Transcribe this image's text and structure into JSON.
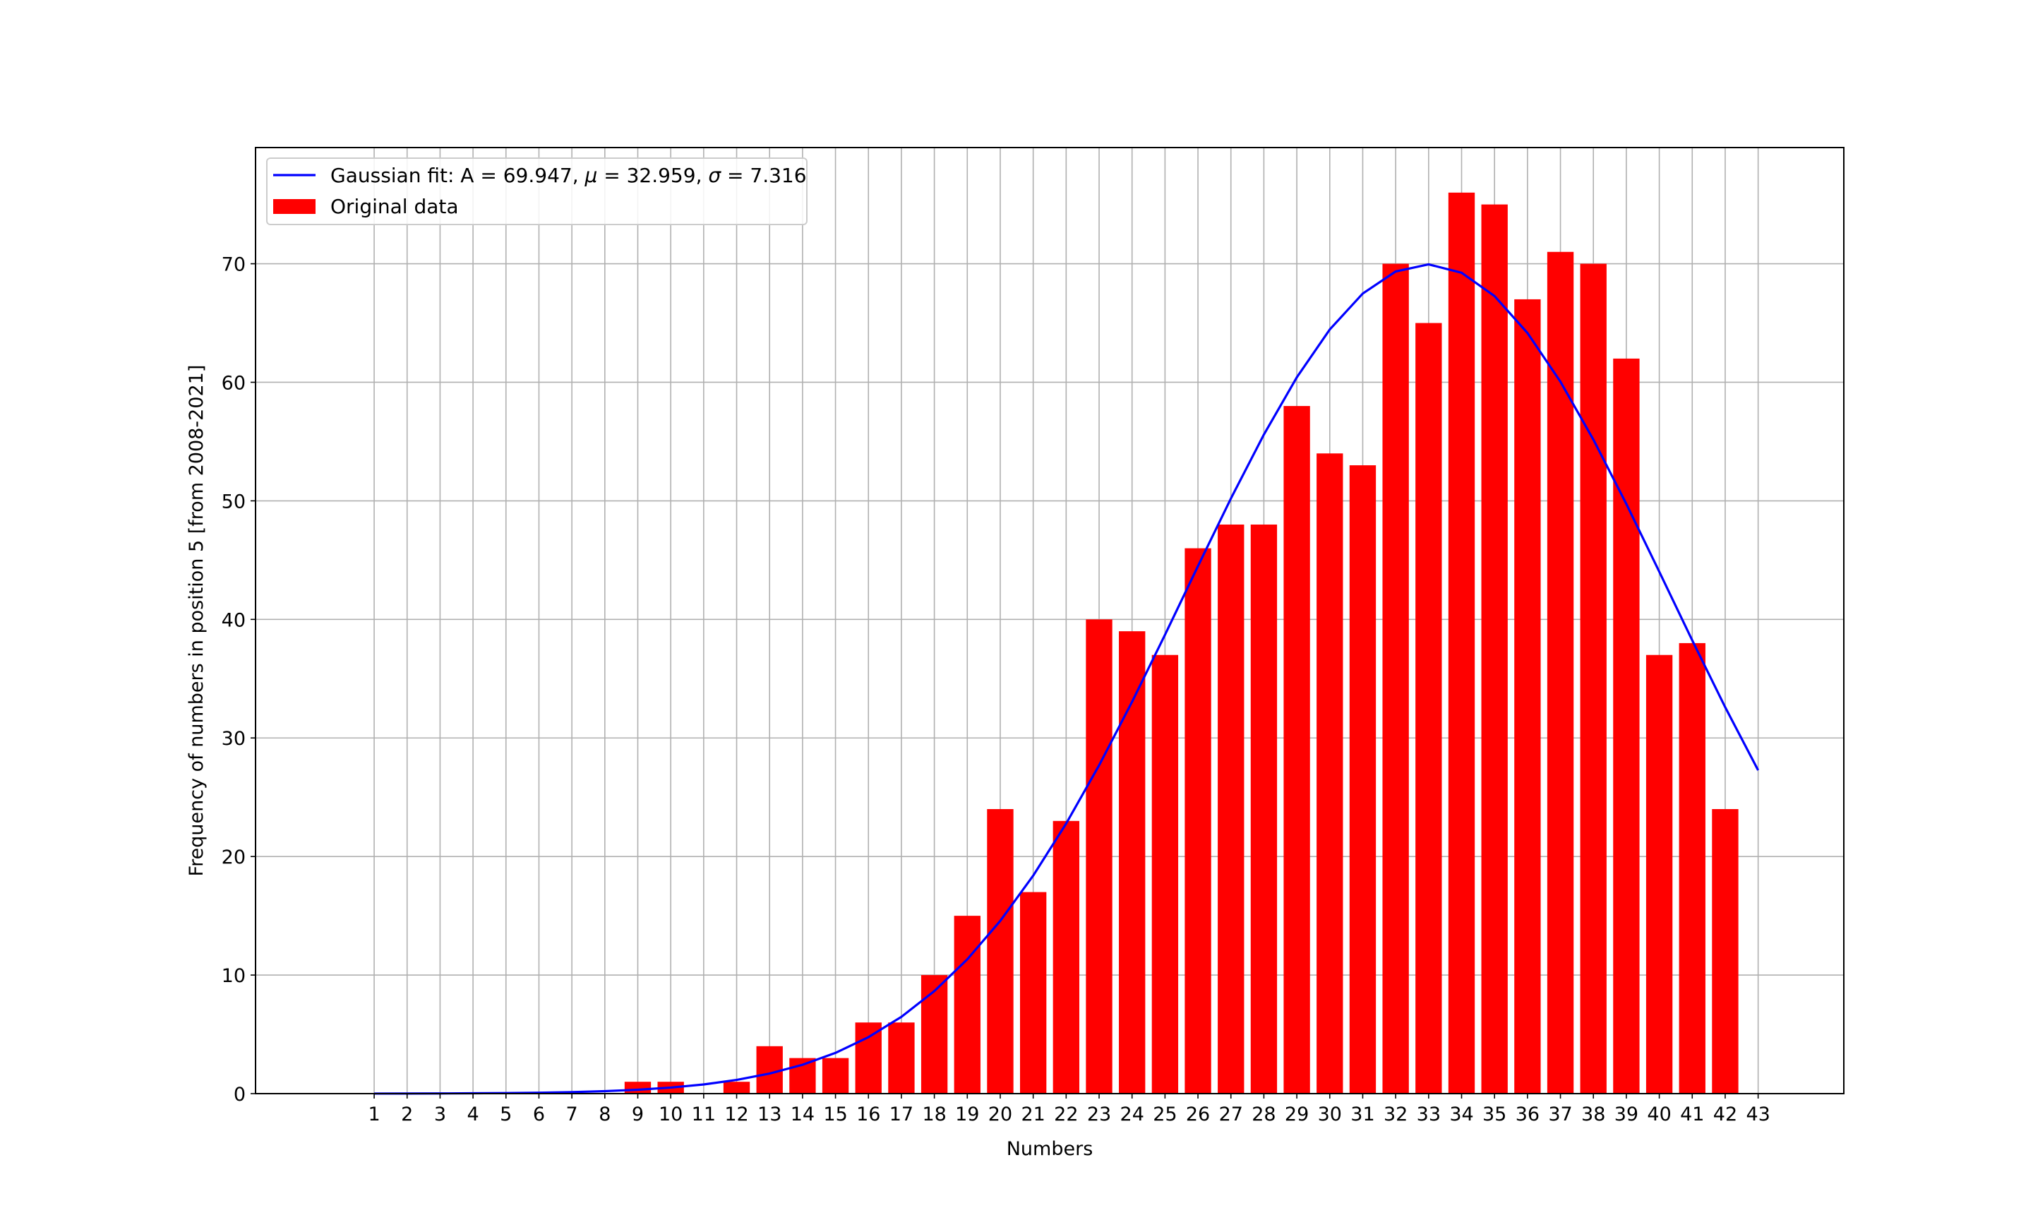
{
  "chart_data": {
    "type": "bar",
    "xlabel": "Numbers",
    "ylabel": "Frequency of numbers in position 5 [from 2008-2021]",
    "x": [
      1,
      2,
      3,
      4,
      5,
      6,
      7,
      8,
      9,
      10,
      11,
      12,
      13,
      14,
      15,
      16,
      17,
      18,
      19,
      20,
      21,
      22,
      23,
      24,
      25,
      26,
      27,
      28,
      29,
      30,
      31,
      32,
      33,
      34,
      35,
      36,
      37,
      38,
      39,
      40,
      41,
      42,
      43
    ],
    "xticks": [
      "1",
      "2",
      "3",
      "4",
      "5",
      "6",
      "7",
      "8",
      "9",
      "10",
      "11",
      "12",
      "13",
      "14",
      "15",
      "16",
      "17",
      "18",
      "19",
      "20",
      "21",
      "22",
      "23",
      "24",
      "25",
      "26",
      "27",
      "28",
      "29",
      "30",
      "31",
      "32",
      "33",
      "34",
      "35",
      "36",
      "37",
      "38",
      "39",
      "40",
      "41",
      "42",
      "43"
    ],
    "yticks": [
      "0",
      "10",
      "20",
      "30",
      "40",
      "50",
      "60",
      "70"
    ],
    "ytick_values": [
      0,
      10,
      20,
      30,
      40,
      50,
      60,
      70
    ],
    "xlim": [
      -2.6,
      45.6
    ],
    "ylim": [
      0,
      79.8
    ],
    "grid": true,
    "legend_position": "top-left",
    "series": [
      {
        "name": "Original data",
        "kind": "bar",
        "color": "#ff0000",
        "values": [
          0,
          0,
          0,
          0,
          0,
          0,
          0,
          0,
          1,
          1,
          0,
          1,
          4,
          3,
          3,
          6,
          6,
          10,
          15,
          24,
          17,
          23,
          40,
          39,
          37,
          46,
          48,
          48,
          58,
          54,
          53,
          70,
          65,
          76,
          75,
          67,
          71,
          70,
          62,
          37,
          38,
          24,
          0
        ]
      },
      {
        "name": "Gaussian fit: A = 69.947, μ = 32.959, σ = 7.316",
        "kind": "line",
        "color": "#0000ff",
        "model": "gaussian",
        "params": {
          "A": 69.947,
          "mu": 32.959,
          "sigma": 7.316
        }
      }
    ]
  }
}
